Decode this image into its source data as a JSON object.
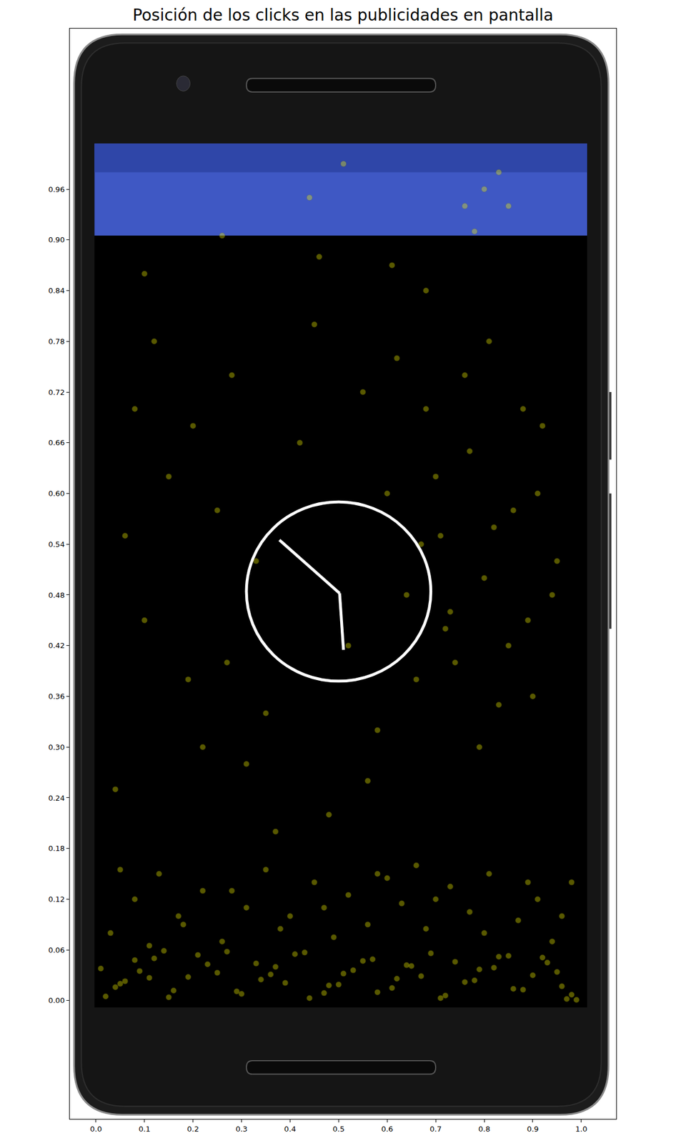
{
  "chart_data": {
    "type": "scatter",
    "title": "Posición de los clicks en las publicidades en pantalla",
    "color": "#ffff00",
    "marker": "circle",
    "grid": false,
    "x": [
      0.02,
      0.05,
      0.09,
      0.12,
      0.16,
      0.19,
      0.23,
      0.27,
      0.3,
      0.34,
      0.37,
      0.41,
      0.44,
      0.48,
      0.51,
      0.55,
      0.58,
      0.62,
      0.65,
      0.69,
      0.72,
      0.76,
      0.79,
      0.83,
      0.86,
      0.9,
      0.93,
      0.97,
      0.99,
      0.01,
      0.04,
      0.08,
      0.11,
      0.15,
      0.21,
      0.25,
      0.29,
      0.33,
      0.39,
      0.43,
      0.47,
      0.53,
      0.57,
      0.61,
      0.67,
      0.71,
      0.74,
      0.78,
      0.82,
      0.88,
      0.92,
      0.95,
      0.98,
      0.06,
      0.14,
      0.36,
      0.5,
      0.64,
      0.85,
      0.96,
      0.03,
      0.08,
      0.13,
      0.18,
      0.22,
      0.26,
      0.31,
      0.35,
      0.4,
      0.45,
      0.49,
      0.52,
      0.56,
      0.6,
      0.63,
      0.68,
      0.73,
      0.77,
      0.81,
      0.87,
      0.91,
      0.94,
      0.98,
      0.05,
      0.17,
      0.28,
      0.38,
      0.47,
      0.58,
      0.7,
      0.8,
      0.89,
      0.96,
      0.11,
      0.66,
      0.04,
      0.1,
      0.15,
      0.22,
      0.28,
      0.33,
      0.37,
      0.42,
      0.06,
      0.12,
      0.19,
      0.25,
      0.31,
      0.45,
      0.55,
      0.6,
      0.64,
      0.68,
      0.71,
      0.74,
      0.77,
      0.8,
      0.83,
      0.86,
      0.89,
      0.92,
      0.95,
      0.62,
      0.66,
      0.7,
      0.73,
      0.76,
      0.79,
      0.82,
      0.85,
      0.88,
      0.91,
      0.94,
      0.58,
      0.52,
      0.48,
      0.35,
      0.2,
      0.08,
      0.72,
      0.81,
      0.9,
      0.67,
      0.56,
      0.27,
      0.51,
      0.44,
      0.76,
      0.8,
      0.78,
      0.83,
      0.85,
      0.26,
      0.46,
      0.61,
      0.1,
      0.68
    ],
    "values": [
      0.005,
      0.02,
      0.035,
      0.05,
      0.012,
      0.028,
      0.043,
      0.058,
      0.008,
      0.025,
      0.04,
      0.055,
      0.003,
      0.018,
      0.032,
      0.047,
      0.01,
      0.026,
      0.041,
      0.056,
      0.006,
      0.022,
      0.037,
      0.052,
      0.014,
      0.03,
      0.045,
      0.002,
      0.001,
      0.038,
      0.016,
      0.048,
      0.027,
      0.004,
      0.054,
      0.033,
      0.011,
      0.044,
      0.021,
      0.057,
      0.009,
      0.036,
      0.049,
      0.015,
      0.029,
      0.003,
      0.046,
      0.024,
      0.039,
      0.013,
      0.051,
      0.034,
      0.007,
      0.023,
      0.059,
      0.031,
      0.019,
      0.042,
      0.053,
      0.017,
      0.08,
      0.12,
      0.15,
      0.09,
      0.13,
      0.07,
      0.11,
      0.155,
      0.1,
      0.14,
      0.075,
      0.125,
      0.09,
      0.145,
      0.115,
      0.085,
      0.135,
      0.105,
      0.15,
      0.095,
      0.12,
      0.07,
      0.14,
      0.155,
      0.1,
      0.13,
      0.085,
      0.11,
      0.15,
      0.12,
      0.08,
      0.14,
      0.1,
      0.065,
      0.16,
      0.25,
      0.45,
      0.62,
      0.3,
      0.74,
      0.52,
      0.2,
      0.66,
      0.55,
      0.78,
      0.38,
      0.58,
      0.28,
      0.8,
      0.72,
      0.6,
      0.48,
      0.7,
      0.55,
      0.4,
      0.65,
      0.5,
      0.35,
      0.58,
      0.45,
      0.68,
      0.52,
      0.76,
      0.38,
      0.62,
      0.46,
      0.74,
      0.3,
      0.56,
      0.42,
      0.7,
      0.6,
      0.48,
      0.32,
      0.42,
      0.22,
      0.34,
      0.68,
      0.7,
      0.44,
      0.78,
      0.36,
      0.54,
      0.26,
      0.4,
      0.99,
      0.95,
      0.94,
      0.96,
      0.91,
      0.98,
      0.94,
      0.905,
      0.88,
      0.87,
      0.86,
      0.84
    ],
    "xlim": [
      -0.054,
      1.072
    ],
    "ylim": [
      -0.14,
      1.15
    ],
    "xticks": [
      {
        "value": 0,
        "label": "0.0"
      },
      0.1,
      0.2,
      0.3,
      0.4,
      0.5,
      0.6,
      0.7,
      0.8,
      0.9,
      {
        "value": 1,
        "label": "1.0"
      }
    ],
    "yticks": [
      {
        "value": 0,
        "label": "0.00"
      },
      0.06,
      0.12,
      0.18,
      0.24,
      {
        "value": 0.3,
        "label": "0.30"
      },
      0.36,
      0.42,
      0.48,
      0.54,
      {
        "value": 0.6,
        "label": "0.60"
      },
      0.66,
      0.72,
      0.78,
      0.84,
      {
        "value": 0.9,
        "label": "0.90"
      },
      0.96
    ]
  }
}
